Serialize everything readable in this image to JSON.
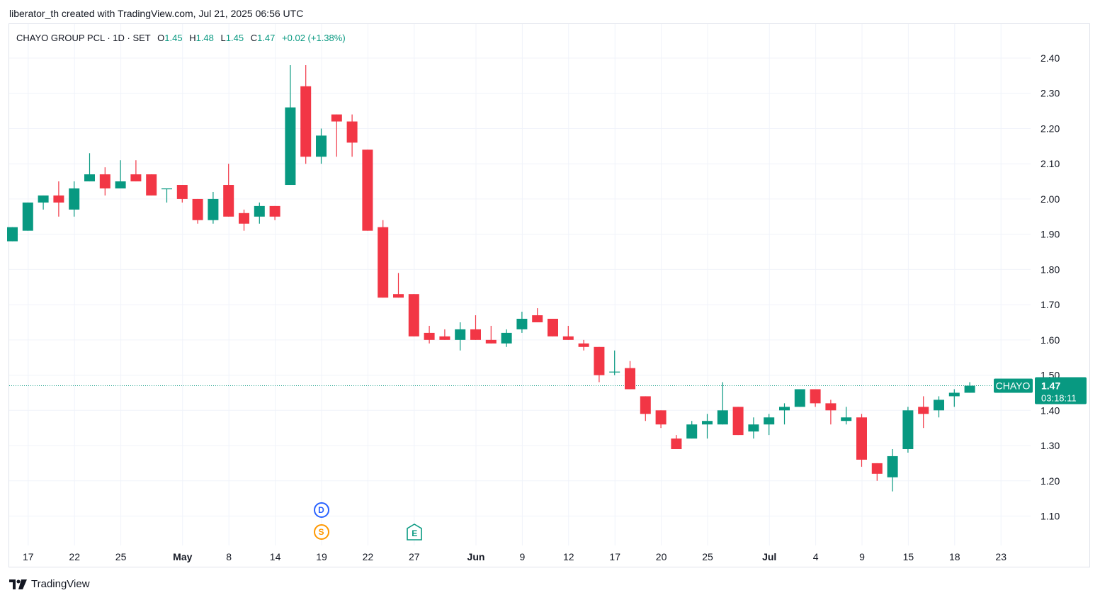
{
  "header": {
    "text": "liberator_th created with TradingView.com, Jul 21, 2025 06:56 UTC"
  },
  "legend": {
    "symbol": "CHAYO GROUP PCL · 1D · SET",
    "o_label": "O",
    "o": "1.45",
    "h_label": "H",
    "h": "1.48",
    "l_label": "L",
    "l": "1.45",
    "c_label": "C",
    "c": "1.47",
    "change": "+0.02 (+1.38%)"
  },
  "price_tag": {
    "ticker": "CHAYO",
    "price": "1.47",
    "countdown": "03:18:11"
  },
  "events": [
    {
      "label": "D",
      "color": "#2962ff",
      "index": 20
    },
    {
      "label": "S",
      "color": "#ff9800",
      "index": 20
    }
  ],
  "earnings": {
    "label": "E",
    "color": "#089981",
    "index": 26
  },
  "footer": {
    "brand": "TradingView"
  },
  "colors": {
    "up": "#089981",
    "down": "#f23645",
    "grid": "#f0f3fa",
    "text": "#131722"
  },
  "chart_data": {
    "type": "candlestick",
    "title": "CHAYO GROUP PCL · 1D · SET",
    "x_tick_labels": [
      "17",
      "22",
      "25",
      "May",
      "8",
      "14",
      "19",
      "22",
      "27",
      "Jun",
      "9",
      "12",
      "17",
      "20",
      "25",
      "Jul",
      "4",
      "9",
      "15",
      "18",
      "23"
    ],
    "y_ticks": [
      1.1,
      1.2,
      1.3,
      1.4,
      1.5,
      1.6,
      1.7,
      1.8,
      1.9,
      2.0,
      2.1,
      2.2,
      2.3,
      2.4
    ],
    "ylim": [
      1.02,
      2.5
    ],
    "grid": true,
    "last_price": 1.47,
    "candles": [
      {
        "o": 1.88,
        "h": 1.92,
        "l": 1.88,
        "c": 1.92
      },
      {
        "o": 1.91,
        "h": 1.99,
        "l": 1.91,
        "c": 1.99
      },
      {
        "o": 1.99,
        "h": 2.01,
        "l": 1.97,
        "c": 2.01
      },
      {
        "o": 2.01,
        "h": 2.05,
        "l": 1.95,
        "c": 1.99
      },
      {
        "o": 1.97,
        "h": 2.05,
        "l": 1.95,
        "c": 2.03
      },
      {
        "o": 2.05,
        "h": 2.13,
        "l": 2.05,
        "c": 2.07
      },
      {
        "o": 2.07,
        "h": 2.09,
        "l": 2.01,
        "c": 2.03
      },
      {
        "o": 2.03,
        "h": 2.11,
        "l": 2.03,
        "c": 2.05
      },
      {
        "o": 2.07,
        "h": 2.11,
        "l": 2.05,
        "c": 2.05
      },
      {
        "o": 2.07,
        "h": 2.07,
        "l": 2.01,
        "c": 2.01
      },
      {
        "o": 2.03,
        "h": 2.03,
        "l": 1.99,
        "c": 2.03
      },
      {
        "o": 2.04,
        "h": 2.04,
        "l": 1.99,
        "c": 2.0
      },
      {
        "o": 2.0,
        "h": 2.0,
        "l": 1.93,
        "c": 1.94
      },
      {
        "o": 1.94,
        "h": 2.02,
        "l": 1.93,
        "c": 2.0
      },
      {
        "o": 2.04,
        "h": 2.1,
        "l": 1.95,
        "c": 1.95
      },
      {
        "o": 1.96,
        "h": 1.97,
        "l": 1.91,
        "c": 1.93
      },
      {
        "o": 1.95,
        "h": 1.99,
        "l": 1.93,
        "c": 1.98
      },
      {
        "o": 1.98,
        "h": 1.98,
        "l": 1.94,
        "c": 1.95
      },
      {
        "o": 2.04,
        "h": 2.38,
        "l": 2.04,
        "c": 2.26
      },
      {
        "o": 2.32,
        "h": 2.38,
        "l": 2.1,
        "c": 2.12
      },
      {
        "o": 2.12,
        "h": 2.2,
        "l": 2.1,
        "c": 2.18
      },
      {
        "o": 2.24,
        "h": 2.24,
        "l": 2.12,
        "c": 2.22
      },
      {
        "o": 2.22,
        "h": 2.24,
        "l": 2.12,
        "c": 2.16
      },
      {
        "o": 2.14,
        "h": 2.14,
        "l": 1.91,
        "c": 1.91
      },
      {
        "o": 1.92,
        "h": 1.94,
        "l": 1.72,
        "c": 1.72
      },
      {
        "o": 1.73,
        "h": 1.79,
        "l": 1.72,
        "c": 1.72
      },
      {
        "o": 1.73,
        "h": 1.73,
        "l": 1.61,
        "c": 1.61
      },
      {
        "o": 1.62,
        "h": 1.64,
        "l": 1.59,
        "c": 1.6
      },
      {
        "o": 1.61,
        "h": 1.63,
        "l": 1.6,
        "c": 1.6
      },
      {
        "o": 1.6,
        "h": 1.65,
        "l": 1.57,
        "c": 1.63
      },
      {
        "o": 1.63,
        "h": 1.67,
        "l": 1.6,
        "c": 1.6
      },
      {
        "o": 1.6,
        "h": 1.64,
        "l": 1.59,
        "c": 1.59
      },
      {
        "o": 1.59,
        "h": 1.63,
        "l": 1.58,
        "c": 1.62
      },
      {
        "o": 1.63,
        "h": 1.68,
        "l": 1.62,
        "c": 1.66
      },
      {
        "o": 1.67,
        "h": 1.69,
        "l": 1.65,
        "c": 1.65
      },
      {
        "o": 1.66,
        "h": 1.66,
        "l": 1.61,
        "c": 1.61
      },
      {
        "o": 1.61,
        "h": 1.64,
        "l": 1.6,
        "c": 1.6
      },
      {
        "o": 1.59,
        "h": 1.6,
        "l": 1.57,
        "c": 1.58
      },
      {
        "o": 1.58,
        "h": 1.58,
        "l": 1.48,
        "c": 1.5
      },
      {
        "o": 1.51,
        "h": 1.57,
        "l": 1.5,
        "c": 1.51
      },
      {
        "o": 1.52,
        "h": 1.54,
        "l": 1.46,
        "c": 1.46
      },
      {
        "o": 1.44,
        "h": 1.44,
        "l": 1.37,
        "c": 1.39
      },
      {
        "o": 1.4,
        "h": 1.4,
        "l": 1.35,
        "c": 1.36
      },
      {
        "o": 1.32,
        "h": 1.33,
        "l": 1.29,
        "c": 1.29
      },
      {
        "o": 1.32,
        "h": 1.37,
        "l": 1.32,
        "c": 1.36
      },
      {
        "o": 1.36,
        "h": 1.39,
        "l": 1.32,
        "c": 1.37
      },
      {
        "o": 1.36,
        "h": 1.48,
        "l": 1.36,
        "c": 1.4
      },
      {
        "o": 1.41,
        "h": 1.41,
        "l": 1.33,
        "c": 1.33
      },
      {
        "o": 1.34,
        "h": 1.38,
        "l": 1.32,
        "c": 1.36
      },
      {
        "o": 1.36,
        "h": 1.39,
        "l": 1.33,
        "c": 1.38
      },
      {
        "o": 1.4,
        "h": 1.42,
        "l": 1.36,
        "c": 1.41
      },
      {
        "o": 1.41,
        "h": 1.46,
        "l": 1.41,
        "c": 1.46
      },
      {
        "o": 1.46,
        "h": 1.46,
        "l": 1.41,
        "c": 1.42
      },
      {
        "o": 1.42,
        "h": 1.43,
        "l": 1.36,
        "c": 1.4
      },
      {
        "o": 1.37,
        "h": 1.41,
        "l": 1.36,
        "c": 1.38
      },
      {
        "o": 1.38,
        "h": 1.39,
        "l": 1.24,
        "c": 1.26
      },
      {
        "o": 1.25,
        "h": 1.25,
        "l": 1.2,
        "c": 1.22
      },
      {
        "o": 1.21,
        "h": 1.29,
        "l": 1.17,
        "c": 1.27
      },
      {
        "o": 1.29,
        "h": 1.41,
        "l": 1.28,
        "c": 1.4
      },
      {
        "o": 1.41,
        "h": 1.44,
        "l": 1.35,
        "c": 1.39
      },
      {
        "o": 1.4,
        "h": 1.44,
        "l": 1.38,
        "c": 1.43
      },
      {
        "o": 1.44,
        "h": 1.46,
        "l": 1.41,
        "c": 1.45
      },
      {
        "o": 1.45,
        "h": 1.48,
        "l": 1.45,
        "c": 1.47
      }
    ]
  }
}
